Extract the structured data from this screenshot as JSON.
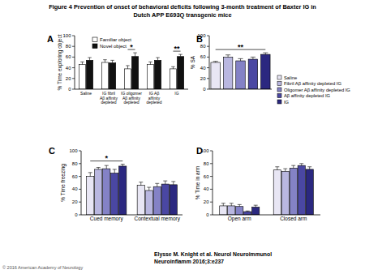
{
  "header": {
    "title": [
      "Figure 4 Prevention of onset of behavioral deficits following 3-month treatment of Baxter IG in",
      "Dutch APP E693Q transgenic mice"
    ]
  },
  "chart_data": [
    {
      "type": "bar",
      "title": "A",
      "y_label": "% Time exploring object",
      "categories": [
        "Saline",
        "IG fibril\nAβ affinity\ndepleted",
        "IG oligomer\nAβ affinity\ndepleted",
        "IG Aβ\naffinity\ndepleted",
        "IG"
      ],
      "series": [
        {
          "name": "Familiar object",
          "color": "#ffffff",
          "values": [
            46,
            50,
            38,
            46,
            38
          ],
          "errors": [
            5,
            5,
            6,
            5,
            4
          ]
        },
        {
          "name": "Novel object",
          "color": "#111111",
          "values": [
            54,
            49,
            61,
            54,
            61
          ],
          "errors": [
            5,
            5,
            7,
            5,
            4
          ]
        }
      ],
      "ylim": [
        0,
        100
      ],
      "yticks": [
        0,
        20,
        40,
        60,
        80,
        100
      ],
      "legend": "top-left",
      "annotations": [
        {
          "text": "*",
          "category": "IG oligomer\nAβ affinity\ndepleted"
        },
        {
          "text": "**",
          "category": "IG"
        }
      ]
    },
    {
      "type": "bar",
      "title": "B",
      "y_label": "% SA",
      "categories": [
        "Saline",
        "Fibril Aβ affinity depleted IG",
        "Oligomer Aβ affinity depleted IG",
        "Aβ affinity depleted IG",
        "IG"
      ],
      "values": [
        50,
        60,
        53,
        56,
        65
      ],
      "errors": [
        2,
        4,
        4,
        4,
        3
      ],
      "colors": [
        "#e8e6f4",
        "#b9b7e0",
        "#8482c6",
        "#4a47a3",
        "#2b2880"
      ],
      "ylim": [
        0,
        100
      ],
      "yticks": [
        0,
        20,
        40,
        60,
        80,
        100
      ],
      "tick_labels": "y",
      "legend": "right",
      "annotations": [
        {
          "text": "**",
          "from": "Saline",
          "to": "IG"
        }
      ]
    },
    {
      "type": "bar",
      "title": "C",
      "y_label": "% Time freezing",
      "categories": [
        "Cued memory",
        "Contextual memory"
      ],
      "series": [
        {
          "color": "#e8e6f4",
          "values": [
            60,
            46
          ],
          "errors": [
            6,
            5
          ]
        },
        {
          "color": "#b9b7e0",
          "values": [
            71,
            38
          ],
          "errors": [
            3,
            5
          ]
        },
        {
          "color": "#8482c6",
          "values": [
            72,
            44
          ],
          "errors": [
            5,
            5
          ]
        },
        {
          "color": "#4a47a3",
          "values": [
            65,
            48
          ],
          "errors": [
            6,
            5
          ]
        },
        {
          "color": "#2b2880",
          "values": [
            76,
            47
          ],
          "errors": [
            3,
            5
          ]
        }
      ],
      "ylim": [
        0,
        100
      ],
      "yticks": [
        0,
        20,
        40,
        60,
        80,
        100
      ],
      "annotations": [
        {
          "text": "*",
          "category": "Cued memory"
        }
      ]
    },
    {
      "type": "bar",
      "title": "D",
      "y_label": "% Time in arm",
      "categories": [
        "Open arm",
        "Closed arm"
      ],
      "series": [
        {
          "color": "#e8e6f4",
          "values": [
            14,
            70
          ],
          "errors": [
            4,
            5
          ]
        },
        {
          "color": "#b9b7e0",
          "values": [
            14,
            68
          ],
          "errors": [
            4,
            4
          ]
        },
        {
          "color": "#8482c6",
          "values": [
            13,
            73
          ],
          "errors": [
            3,
            4
          ]
        },
        {
          "color": "#4a47a3",
          "values": [
            5,
            77
          ],
          "errors": [
            1,
            3
          ]
        },
        {
          "color": "#2b2880",
          "values": [
            12,
            71
          ],
          "errors": [
            3,
            4
          ]
        }
      ],
      "ylim": [
        0,
        100
      ],
      "yticks": [
        0,
        20,
        40,
        60,
        80,
        100
      ]
    }
  ],
  "footer": {
    "citation": [
      "Elysse M. Knight et al. Neurol Neuroimmunol",
      "Neuroinflamm 2016;3:e237"
    ],
    "copyright": "© 2016 American Academy of Neurology"
  }
}
